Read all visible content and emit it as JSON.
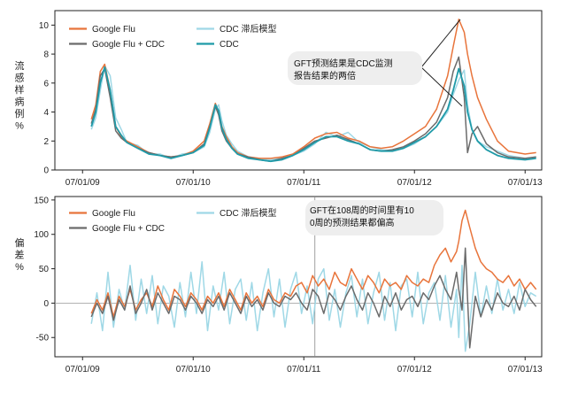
{
  "chart_data": [
    {
      "type": "line",
      "panel": "top",
      "ylabel": "流感样病例%",
      "ylim": [
        0,
        11
      ],
      "y_ticks": [
        "0",
        "2",
        "4",
        "6",
        "8",
        "10"
      ],
      "y_tick_values": [
        0,
        2,
        4,
        6,
        8,
        10
      ],
      "x_tick_labels": [
        "07/01/09",
        "07/01/10",
        "07/01/11",
        "07/01/12",
        "07/01/13"
      ],
      "x_range_years": [
        2009.25,
        2013.65
      ],
      "x_tick_years": [
        2009.5,
        2010.5,
        2011.5,
        2012.5,
        2013.5
      ],
      "grid": false,
      "legend": [
        {
          "name": "Google Flu",
          "color": "#e8743b"
        },
        {
          "name": "Google Flu + CDC",
          "color": "#6b6b6b"
        },
        {
          "name": "CDC 滞后模型",
          "color": "#9fd8e6"
        },
        {
          "name": "CDC",
          "color": "#1f9aa8"
        }
      ],
      "annotation": "GFT预测结果是CDC监测报告结果的两倍",
      "x": [
        2009.58,
        2009.62,
        2009.66,
        2009.7,
        2009.75,
        2009.8,
        2009.85,
        2009.9,
        2010.0,
        2010.1,
        2010.2,
        2010.3,
        2010.4,
        2010.5,
        2010.6,
        2010.65,
        2010.7,
        2010.73,
        2010.76,
        2010.8,
        2010.85,
        2010.9,
        2011.0,
        2011.1,
        2011.2,
        2011.3,
        2011.4,
        2011.5,
        2011.6,
        2011.7,
        2011.8,
        2011.9,
        2012.0,
        2012.1,
        2012.2,
        2012.3,
        2012.4,
        2012.5,
        2012.6,
        2012.7,
        2012.8,
        2012.85,
        2012.9,
        2012.95,
        2012.98,
        2013.02,
        2013.07,
        2013.15,
        2013.25,
        2013.35,
        2013.5,
        2013.6
      ],
      "series": [
        {
          "name": "Google Flu",
          "color": "#e8743b",
          "values": [
            3.5,
            4.5,
            6.8,
            7.3,
            5.5,
            3.0,
            2.3,
            2.0,
            1.6,
            1.2,
            1.0,
            0.9,
            1.0,
            1.3,
            2.0,
            3.2,
            4.6,
            4.0,
            3.0,
            2.3,
            1.6,
            1.2,
            0.9,
            0.8,
            0.8,
            0.9,
            1.1,
            1.6,
            2.2,
            2.5,
            2.6,
            2.2,
            2.0,
            1.6,
            1.5,
            1.6,
            2.0,
            2.5,
            3.0,
            4.2,
            6.5,
            8.5,
            10.4,
            9.5,
            8.0,
            6.5,
            5.0,
            3.5,
            2.0,
            1.3,
            1.1,
            1.2
          ]
        },
        {
          "name": "Google Flu + CDC",
          "color": "#6b6b6b",
          "values": [
            3.2,
            4.2,
            6.5,
            7.0,
            5.0,
            2.7,
            2.2,
            1.9,
            1.5,
            1.2,
            1.0,
            0.9,
            1.0,
            1.2,
            1.8,
            3.0,
            4.4,
            3.8,
            2.7,
            2.0,
            1.5,
            1.1,
            0.9,
            0.7,
            0.6,
            0.8,
            1.0,
            1.5,
            2.0,
            2.2,
            2.4,
            2.1,
            1.8,
            1.4,
            1.3,
            1.4,
            1.6,
            2.0,
            2.5,
            3.3,
            5.0,
            6.8,
            7.8,
            5.0,
            1.2,
            2.5,
            3.0,
            1.8,
            1.2,
            0.9,
            0.8,
            0.9
          ]
        },
        {
          "name": "CDC 滞后模型",
          "color": "#9fd8e6",
          "values": [
            2.8,
            3.6,
            5.5,
            7.2,
            6.5,
            3.6,
            2.8,
            1.9,
            1.7,
            1.1,
            1.1,
            0.8,
            1.1,
            1.2,
            1.6,
            2.6,
            4.2,
            4.5,
            3.4,
            2.4,
            1.8,
            1.3,
            0.9,
            0.8,
            0.7,
            0.8,
            1.0,
            1.3,
            1.8,
            2.6,
            2.3,
            2.6,
            1.9,
            1.6,
            1.4,
            1.3,
            1.5,
            1.8,
            2.3,
            3.0,
            4.0,
            5.2,
            6.2,
            6.9,
            4.5,
            2.8,
            2.0,
            1.6,
            1.3,
            1.0,
            0.8,
            0.9
          ]
        },
        {
          "name": "CDC",
          "color": "#1f9aa8",
          "values": [
            3.0,
            4.0,
            6.0,
            7.1,
            5.5,
            3.0,
            2.4,
            1.9,
            1.5,
            1.1,
            1.0,
            0.8,
            1.0,
            1.2,
            1.7,
            2.9,
            4.5,
            4.1,
            2.9,
            2.1,
            1.5,
            1.1,
            0.8,
            0.7,
            0.6,
            0.7,
            1.0,
            1.4,
            1.9,
            2.3,
            2.3,
            2.0,
            1.8,
            1.4,
            1.3,
            1.3,
            1.5,
            1.9,
            2.3,
            3.0,
            4.2,
            5.5,
            7.0,
            5.8,
            4.0,
            2.8,
            2.0,
            1.4,
            1.0,
            0.8,
            0.7,
            0.8
          ]
        }
      ]
    },
    {
      "type": "line",
      "panel": "bottom",
      "ylabel": "偏差%",
      "ylim": [
        -78,
        155
      ],
      "y_ticks": [
        "150",
        "100",
        "50",
        "0",
        "-50"
      ],
      "y_tick_values": [
        150,
        100,
        50,
        0,
        -50
      ],
      "x_tick_labels": [
        "07/01/09",
        "07/01/10",
        "07/01/11",
        "07/01/12",
        "07/01/13"
      ],
      "x_range_years": [
        2009.25,
        2013.65
      ],
      "x_tick_years": [
        2009.5,
        2010.5,
        2011.5,
        2012.5,
        2013.5
      ],
      "grid": false,
      "legend": [
        {
          "name": "Google Flu",
          "color": "#e8743b"
        },
        {
          "name": "Google Flu + CDC",
          "color": "#6b6b6b"
        },
        {
          "name": "CDC 滞后模型",
          "color": "#9fd8e6"
        }
      ],
      "annotation": "GFT在108周的时间里有100周的预测结果都偏高",
      "divider_year": 2011.6,
      "x": [
        2009.58,
        2009.63,
        2009.68,
        2009.73,
        2009.78,
        2009.83,
        2009.88,
        2009.93,
        2009.98,
        2010.03,
        2010.08,
        2010.13,
        2010.18,
        2010.23,
        2010.28,
        2010.33,
        2010.38,
        2010.43,
        2010.48,
        2010.53,
        2010.58,
        2010.63,
        2010.68,
        2010.73,
        2010.78,
        2010.83,
        2010.88,
        2010.93,
        2010.98,
        2011.03,
        2011.08,
        2011.13,
        2011.18,
        2011.23,
        2011.28,
        2011.33,
        2011.38,
        2011.43,
        2011.48,
        2011.53,
        2011.58,
        2011.63,
        2011.68,
        2011.73,
        2011.78,
        2011.83,
        2011.88,
        2011.93,
        2011.98,
        2012.03,
        2012.08,
        2012.13,
        2012.18,
        2012.23,
        2012.28,
        2012.33,
        2012.38,
        2012.43,
        2012.48,
        2012.53,
        2012.58,
        2012.63,
        2012.68,
        2012.73,
        2012.78,
        2012.83,
        2012.88,
        2012.9,
        2012.93,
        2012.96,
        2013.0,
        2013.05,
        2013.1,
        2013.15,
        2013.2,
        2013.25,
        2013.3,
        2013.35,
        2013.4,
        2013.45,
        2013.5,
        2013.55,
        2013.6
      ],
      "series": [
        {
          "name": "Google Flu",
          "color": "#e8743b",
          "values": [
            -15,
            5,
            -10,
            15,
            -20,
            10,
            -5,
            20,
            -10,
            5,
            15,
            -5,
            25,
            5,
            -10,
            20,
            10,
            -5,
            15,
            5,
            -10,
            10,
            0,
            15,
            -5,
            20,
            5,
            -10,
            15,
            0,
            10,
            -5,
            20,
            5,
            0,
            15,
            10,
            25,
            30,
            15,
            40,
            25,
            35,
            20,
            45,
            30,
            25,
            50,
            35,
            20,
            40,
            30,
            15,
            35,
            25,
            30,
            20,
            40,
            30,
            25,
            35,
            30,
            55,
            70,
            80,
            60,
            75,
            90,
            120,
            135,
            110,
            80,
            60,
            50,
            45,
            35,
            30,
            40,
            25,
            35,
            20,
            30,
            20
          ]
        },
        {
          "name": "Google Flu + CDC",
          "color": "#6b6b6b",
          "values": [
            -20,
            0,
            -15,
            10,
            -25,
            5,
            -10,
            25,
            -15,
            0,
            20,
            -10,
            15,
            0,
            -15,
            10,
            5,
            -10,
            10,
            0,
            -15,
            5,
            -5,
            10,
            -10,
            15,
            0,
            -15,
            10,
            -5,
            5,
            -10,
            15,
            0,
            -5,
            10,
            5,
            15,
            0,
            -10,
            20,
            10,
            -15,
            15,
            5,
            -10,
            10,
            25,
            5,
            -10,
            15,
            0,
            -20,
            10,
            -5,
            15,
            -10,
            5,
            10,
            -5,
            15,
            5,
            25,
            40,
            20,
            5,
            45,
            20,
            -10,
            80,
            -65,
            10,
            -20,
            5,
            -10,
            15,
            0,
            -5,
            10,
            -10,
            20,
            5,
            -5
          ]
        },
        {
          "name": "CDC 滞后模型",
          "color": "#9fd8e6",
          "values": [
            -30,
            15,
            -40,
            45,
            -35,
            20,
            -10,
            55,
            -25,
            35,
            -15,
            40,
            -30,
            25,
            10,
            -35,
            30,
            -20,
            45,
            -15,
            60,
            -40,
            25,
            -10,
            45,
            -30,
            20,
            35,
            -25,
            30,
            -40,
            15,
            50,
            -20,
            35,
            -35,
            20,
            45,
            -15,
            25,
            -30,
            35,
            50,
            -25,
            20,
            -35,
            15,
            40,
            -20,
            35,
            -30,
            15,
            45,
            -25,
            30,
            -40,
            25,
            35,
            -20,
            45,
            -30,
            15,
            30,
            -25,
            40,
            -35,
            20,
            -50,
            55,
            -70,
            -30,
            45,
            -20,
            25,
            -15,
            35,
            -10,
            20,
            -15,
            30,
            -5,
            15,
            10
          ]
        }
      ]
    }
  ]
}
